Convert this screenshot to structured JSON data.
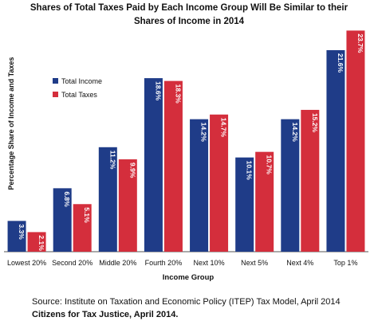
{
  "chart_data": {
    "type": "bar",
    "title": "Shares of Total Taxes Paid by Each Income Group Will Be Similar to their",
    "subtitle": "Shares of Income in 2014",
    "xlabel": "Income Group",
    "ylabel": "Percentage Share of Income and Taxes",
    "ylim": [
      0,
      24.5
    ],
    "grid": false,
    "legend_position": "top-left",
    "categories": [
      "Lowest 20%",
      "Second 20%",
      "Middle 20%",
      "Fourth 20%",
      "Next 10%",
      "Next 5%",
      "Next 4%",
      "Top 1%"
    ],
    "series": [
      {
        "name": "Total Income",
        "color": "#1f3c88",
        "values": [
          3.3,
          6.8,
          11.2,
          18.6,
          14.2,
          10.1,
          14.2,
          21.6
        ],
        "labels": [
          "3.3%",
          "6.8%",
          "11.2%",
          "18.6%",
          "14.2%",
          "10.1%",
          "14.2%",
          "21.6%"
        ]
      },
      {
        "name": "Total Taxes",
        "color": "#d42e3c",
        "values": [
          2.1,
          5.1,
          9.9,
          18.3,
          14.7,
          10.7,
          15.2,
          23.7
        ],
        "labels": [
          "2.1%",
          "5.1%",
          "9.9%",
          "18.3%",
          "14.7%",
          "10.7%",
          "15.2%",
          "23.7%"
        ]
      }
    ]
  },
  "source_line": "Source: Institute on Taxation and Economic Policy (ITEP) Tax Model, April 2014",
  "citation_line": "Citizens for Tax Justice, April 2014."
}
